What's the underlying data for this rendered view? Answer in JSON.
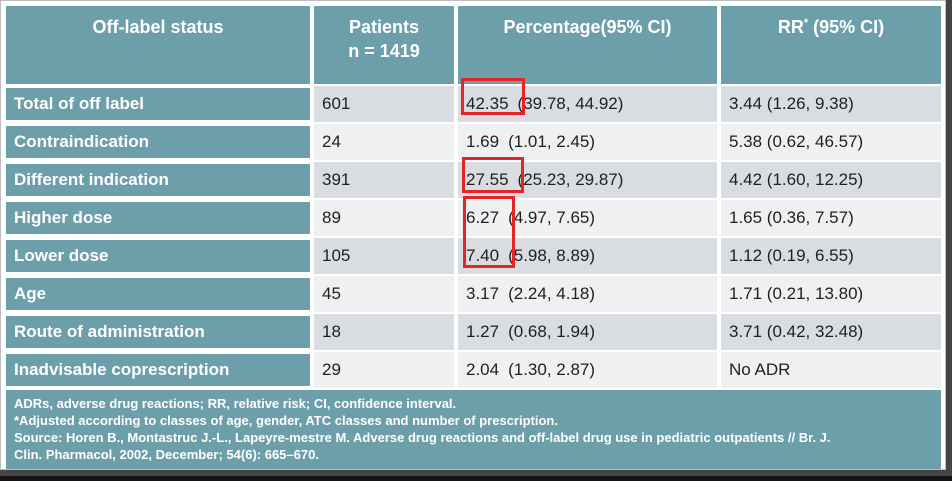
{
  "colors": {
    "teal": "#6d9fab",
    "row_gray": "#d9dde1",
    "row_light": "#eef0f2",
    "highlight_red": "#e42527",
    "header_text": "#ffffff",
    "cell_text": "#1f1f1f"
  },
  "header": {
    "col1": "Off-label status",
    "col2_line1": "Patients",
    "col2_line2": "n = 1419",
    "col3": "Percentage(95% CI)",
    "col4_rr": "RR",
    "col4_sup": "*",
    "col4_rest": " (95% CI)"
  },
  "rows": [
    {
      "label": "Total of off label",
      "patients": "601",
      "pct": "42.35",
      "pct_ci": "(39.78, 44.92)",
      "rr": "3.44 (1.26, 9.38)"
    },
    {
      "label": "Contraindication",
      "patients": "24",
      "pct": "1.69",
      "pct_ci": "(1.01, 2.45)",
      "rr": "5.38 (0.62, 46.57)"
    },
    {
      "label": "Different indication",
      "patients": "391",
      "pct": "27.55",
      "pct_ci": "(25.23, 29.87)",
      "rr": "4.42 (1.60, 12.25)"
    },
    {
      "label": "Higher dose",
      "patients": "89",
      "pct": "6.27",
      "pct_ci": "(4.97, 7.65)",
      "rr": "1.65 (0.36, 7.57)"
    },
    {
      "label": "Lower dose",
      "patients": "105",
      "pct": "7.40",
      "pct_ci": "(5.98, 8.89)",
      "rr": "1.12 (0.19, 6.55)"
    },
    {
      "label": "Age",
      "patients": "45",
      "pct": "3.17",
      "pct_ci": "(2.24, 4.18)",
      "rr": "1.71 (0.21, 13.80)"
    },
    {
      "label": "Route of administration",
      "patients": "18",
      "pct": "1.27",
      "pct_ci": "(0.68, 1.94)",
      "rr": "3.71 (0.42, 32.48)"
    },
    {
      "label": "Inadvisable coprescription",
      "patients": "29",
      "pct": "2.04",
      "pct_ci": "(1.30, 2.87)",
      "rr": "No ADR"
    }
  ],
  "footnotes": [
    "ADRs, adverse drug reactions; RR, relative risk; CI, confidence interval.",
    "*Adjusted according to classes of age, gender, ATC classes and number of prescription.",
    "Source: Horen B., Montastruc J.-L., Lapeyre-mestre M. Adverse drug reactions and off-label drug use in pediatric outpatients // Br. J.",
    "Clin. Pharmacol, 2002, December; 54(6): 665–670."
  ],
  "highlights": {
    "boxed_values": [
      "42.35",
      "27.55",
      "6.27",
      "7.40"
    ]
  }
}
